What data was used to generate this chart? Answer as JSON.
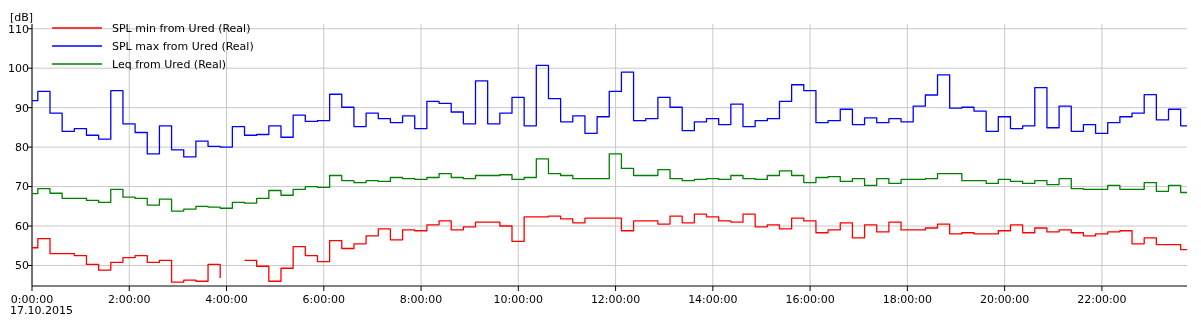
{
  "chart_data": {
    "type": "step",
    "ylabel": "[dB]",
    "x": [
      0,
      0.12,
      0.37,
      0.62,
      0.87,
      1.12,
      1.37,
      1.62,
      1.87,
      2.12,
      2.37,
      2.62,
      2.87,
      3.12,
      3.37,
      3.62,
      3.87,
      4.12,
      4.37,
      4.62,
      4.87,
      5.12,
      5.37,
      5.62,
      5.87,
      6.12,
      6.37,
      6.62,
      6.87,
      7.12,
      7.37,
      7.62,
      7.87,
      8.12,
      8.37,
      8.62,
      8.87,
      9.12,
      9.37,
      9.62,
      9.87,
      10.12,
      10.37,
      10.62,
      10.87,
      11.12,
      11.37,
      11.62,
      11.87,
      12.12,
      12.37,
      12.62,
      12.87,
      13.12,
      13.37,
      13.62,
      13.87,
      14.12,
      14.37,
      14.62,
      14.87,
      15.12,
      15.37,
      15.62,
      15.87,
      16.12,
      16.37,
      16.62,
      16.87,
      17.12,
      17.37,
      17.62,
      17.87,
      18.12,
      18.37,
      18.62,
      18.87,
      19.12,
      19.37,
      19.62,
      19.87,
      20.12,
      20.37,
      20.62,
      20.87,
      21.12,
      21.37,
      21.62,
      21.87,
      22.12,
      22.37,
      22.62,
      22.87,
      23.12,
      23.37,
      23.62,
      23.75
    ],
    "series": [
      {
        "name": "SPL min from Ured (Real)",
        "color": "#ff0000",
        "values": [
          54.5,
          56.8,
          53.0,
          53.0,
          52.5,
          50.3,
          48.8,
          50.8,
          52.0,
          52.5,
          50.8,
          51.3,
          45.8,
          46.3,
          46.0,
          50.3,
          46.8,
          null,
          51.3,
          49.8,
          46.0,
          49.3,
          54.8,
          52.5,
          51.0,
          56.3,
          54.3,
          55.5,
          57.5,
          59.3,
          56.5,
          59.0,
          58.8,
          60.3,
          61.3,
          59.0,
          59.8,
          61.0,
          61.0,
          60.0,
          56.1,
          62.3,
          62.3,
          62.5,
          61.8,
          60.8,
          62.0,
          62.0,
          62.0,
          58.8,
          61.3,
          61.3,
          60.5,
          62.5,
          60.8,
          63.0,
          62.3,
          61.3,
          61.0,
          63.0,
          59.8,
          60.3,
          59.3,
          62.0,
          61.3,
          58.3,
          59.0,
          60.8,
          57.0,
          60.3,
          58.5,
          61.0,
          59.0,
          59.0,
          59.5,
          60.5,
          58.0,
          58.3,
          58.0,
          58.0,
          58.8,
          60.3,
          58.3,
          59.5,
          58.5,
          59.0,
          58.3,
          57.5,
          58.0,
          58.5,
          58.8,
          55.5,
          57.0,
          55.3,
          55.3,
          54.0,
          54.0
        ]
      },
      {
        "name": "SPL max from Ured (Real)",
        "color": "#0000ff",
        "values": [
          91.8,
          94.1,
          88.6,
          84.0,
          84.7,
          83.0,
          82.0,
          94.3,
          85.9,
          83.7,
          78.3,
          85.4,
          79.3,
          77.5,
          81.5,
          80.2,
          80.0,
          85.2,
          83.0,
          83.2,
          85.4,
          82.5,
          88.1,
          86.5,
          86.7,
          93.4,
          90.1,
          85.2,
          88.6,
          87.2,
          86.2,
          87.9,
          84.7,
          91.6,
          91.1,
          88.9,
          85.9,
          96.8,
          85.9,
          88.6,
          92.6,
          85.4,
          100.7,
          92.3,
          86.4,
          87.9,
          83.5,
          87.7,
          94.1,
          99.0,
          86.7,
          87.2,
          92.6,
          90.1,
          84.2,
          86.4,
          87.2,
          85.7,
          90.9,
          85.2,
          86.7,
          87.2,
          91.6,
          95.8,
          94.3,
          86.2,
          86.7,
          89.6,
          85.7,
          87.4,
          86.2,
          87.2,
          86.4,
          90.4,
          93.2,
          98.3,
          89.9,
          90.1,
          89.1,
          84.0,
          87.7,
          84.7,
          85.4,
          95.1,
          84.9,
          90.4,
          84.0,
          85.7,
          83.5,
          86.2,
          87.7,
          88.6,
          93.3,
          86.9,
          89.6,
          85.4,
          85.4
        ]
      },
      {
        "name": "Leq from Ured (Real)",
        "color": "#008000",
        "values": [
          68.2,
          69.5,
          68.3,
          67.0,
          67.0,
          66.5,
          66.0,
          69.3,
          67.3,
          67.0,
          65.3,
          66.8,
          63.8,
          64.3,
          65.0,
          64.8,
          64.5,
          66.0,
          65.8,
          67.0,
          69.0,
          67.8,
          69.3,
          70.0,
          69.8,
          72.8,
          71.5,
          71.0,
          71.5,
          71.3,
          72.3,
          72.0,
          71.8,
          72.3,
          73.3,
          72.3,
          72.0,
          72.8,
          72.8,
          73.0,
          71.8,
          72.3,
          77.0,
          73.3,
          72.8,
          72.0,
          72.0,
          72.0,
          78.3,
          74.6,
          72.8,
          72.8,
          74.3,
          72.0,
          71.5,
          71.8,
          72.0,
          71.8,
          72.8,
          72.0,
          71.8,
          72.8,
          74.0,
          72.8,
          71.0,
          72.3,
          72.5,
          71.3,
          72.0,
          70.3,
          72.0,
          70.8,
          71.8,
          71.8,
          72.0,
          73.3,
          73.3,
          71.5,
          71.5,
          70.8,
          71.8,
          71.3,
          70.8,
          71.5,
          70.5,
          72.0,
          69.5,
          69.3,
          69.3,
          70.3,
          69.3,
          69.3,
          71.0,
          68.8,
          70.3,
          68.5,
          68.5
        ]
      }
    ],
    "xlim": [
      0,
      23.75
    ],
    "ylim": [
      44.8,
      111.2
    ],
    "xticks": [
      {
        "value": 0,
        "label": "0:00:00"
      },
      {
        "value": 2,
        "label": "2:00:00"
      },
      {
        "value": 4,
        "label": "4:00:00"
      },
      {
        "value": 6,
        "label": "6:00:00"
      },
      {
        "value": 8,
        "label": "8:00:00"
      },
      {
        "value": 10,
        "label": "10:00:00"
      },
      {
        "value": 12,
        "label": "12:00:00"
      },
      {
        "value": 14,
        "label": "14:00:00"
      },
      {
        "value": 16,
        "label": "16:00:00"
      },
      {
        "value": 18,
        "label": "18:00:00"
      },
      {
        "value": 20,
        "label": "20:00:00"
      },
      {
        "value": 22,
        "label": "22:00:00"
      }
    ],
    "yticks": [
      50,
      60,
      70,
      80,
      90,
      100,
      110
    ],
    "grid": true,
    "legend": "top left",
    "line_style": "solid",
    "annotations": [
      "17.10.2015"
    ]
  }
}
